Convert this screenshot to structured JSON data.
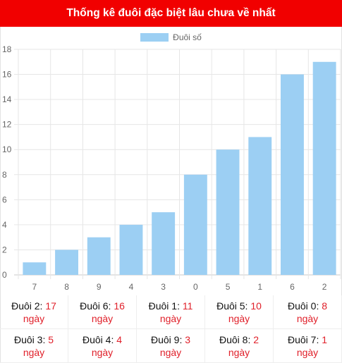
{
  "header": {
    "title": "Thống kê đuôi đặc biệt lâu chưa về nhất"
  },
  "chart_data": {
    "type": "bar",
    "title": "",
    "xlabel": "",
    "ylabel": "",
    "categories": [
      "7",
      "8",
      "9",
      "4",
      "3",
      "0",
      "5",
      "1",
      "6",
      "2"
    ],
    "series": [
      {
        "name": "Đuôi số",
        "values": [
          1,
          2,
          3,
          4,
          5,
          8,
          10,
          11,
          16,
          17
        ],
        "color": "#9ccff3"
      }
    ],
    "ylim": [
      0,
      18
    ],
    "yticks": [
      0,
      2,
      4,
      6,
      8,
      10,
      12,
      14,
      16,
      18
    ],
    "grid": true,
    "legend": "top"
  },
  "stats": [
    {
      "label": "Đuôi 2:",
      "value": "17",
      "unit": "ngày"
    },
    {
      "label": "Đuôi 6:",
      "value": "16",
      "unit": "ngày"
    },
    {
      "label": "Đuôi 1:",
      "value": "11",
      "unit": "ngày"
    },
    {
      "label": "Đuôi 5:",
      "value": "10",
      "unit": "ngày"
    },
    {
      "label": "Đuôi 0:",
      "value": "8",
      "unit": "ngày"
    },
    {
      "label": "Đuôi 3:",
      "value": "5",
      "unit": "ngày"
    },
    {
      "label": "Đuôi 4:",
      "value": "4",
      "unit": "ngày"
    },
    {
      "label": "Đuôi 9:",
      "value": "3",
      "unit": "ngày"
    },
    {
      "label": "Đuôi 8:",
      "value": "2",
      "unit": "ngày"
    },
    {
      "label": "Đuôi 7:",
      "value": "1",
      "unit": "ngày"
    }
  ]
}
